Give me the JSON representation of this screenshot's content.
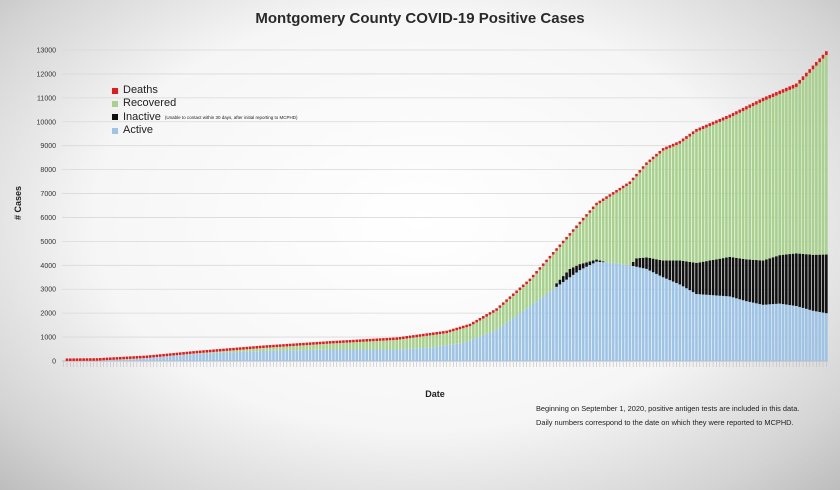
{
  "chart_data": {
    "type": "bar",
    "stacked": true,
    "title": "Montgomery County COVID-19 Positive Cases",
    "xlabel": "Date",
    "ylabel": "# Cases",
    "ylim": [
      0,
      13000
    ],
    "yticks": [
      0,
      1000,
      2000,
      3000,
      4000,
      5000,
      6000,
      7000,
      8000,
      9000,
      10000,
      11000,
      12000,
      13000
    ],
    "grid": true,
    "legend_position": "top-left",
    "num_days": 230,
    "series": [
      {
        "name": "Active",
        "color": "#9dc3e6"
      },
      {
        "name": "Inactive",
        "note": "(Unable to contact within 30 days, after initial reporting to MCPHD)",
        "color": "#111111"
      },
      {
        "name": "Recovered",
        "color": "#a9d18e"
      },
      {
        "name": "Deaths",
        "color": "#e31a1c"
      }
    ],
    "total_cases_keypoints": [
      [
        0,
        0
      ],
      [
        10,
        15
      ],
      [
        25,
        130
      ],
      [
        40,
        330
      ],
      [
        60,
        560
      ],
      [
        80,
        750
      ],
      [
        100,
        910
      ],
      [
        110,
        1100
      ],
      [
        115,
        1200
      ],
      [
        122,
        1500
      ],
      [
        130,
        2150
      ],
      [
        140,
        3400
      ],
      [
        150,
        5000
      ],
      [
        160,
        6600
      ],
      [
        170,
        7500
      ],
      [
        175,
        8300
      ],
      [
        180,
        8900
      ],
      [
        185,
        9200
      ],
      [
        190,
        9700
      ],
      [
        200,
        10300
      ],
      [
        210,
        11000
      ],
      [
        220,
        11600
      ],
      [
        229,
        12950
      ]
    ],
    "active_keypoints": [
      [
        0,
        0
      ],
      [
        20,
        60
      ],
      [
        40,
        300
      ],
      [
        60,
        420
      ],
      [
        80,
        480
      ],
      [
        100,
        480
      ],
      [
        110,
        560
      ],
      [
        120,
        760
      ],
      [
        130,
        1300
      ],
      [
        140,
        2300
      ],
      [
        150,
        3300
      ],
      [
        155,
        3800
      ],
      [
        160,
        4150
      ],
      [
        165,
        4100
      ],
      [
        170,
        4000
      ],
      [
        175,
        3850
      ],
      [
        180,
        3500
      ],
      [
        185,
        3200
      ],
      [
        190,
        2800
      ],
      [
        200,
        2700
      ],
      [
        205,
        2500
      ],
      [
        210,
        2350
      ],
      [
        215,
        2400
      ],
      [
        220,
        2300
      ],
      [
        225,
        2100
      ],
      [
        229,
        2000
      ]
    ],
    "inactive_keypoints": [
      [
        0,
        0
      ],
      [
        147,
        0
      ],
      [
        148,
        150
      ],
      [
        152,
        350
      ],
      [
        158,
        150
      ],
      [
        163,
        0
      ],
      [
        170,
        0
      ],
      [
        172,
        350
      ],
      [
        180,
        700
      ],
      [
        185,
        1000
      ],
      [
        190,
        1300
      ],
      [
        200,
        1650
      ],
      [
        210,
        1850
      ],
      [
        220,
        2200
      ],
      [
        229,
        2450
      ]
    ],
    "deaths_keypoints": [
      [
        0,
        0
      ],
      [
        40,
        8
      ],
      [
        80,
        22
      ],
      [
        110,
        30
      ],
      [
        120,
        45
      ],
      [
        140,
        60
      ],
      [
        160,
        90
      ],
      [
        180,
        110
      ],
      [
        200,
        130
      ],
      [
        229,
        160
      ]
    ],
    "footnotes": [
      "Beginning on September 1, 2020, positive antigen tests are included in this data.",
      "Daily numbers correspond to the date on which they were reported to MCPHD."
    ]
  },
  "legend": {
    "deaths": "Deaths",
    "recovered": "Recovered",
    "inactive": "Inactive",
    "inactive_note": "(Unable to contact within 30 days, after initial reporting to MCPHD)",
    "active": "Active"
  }
}
